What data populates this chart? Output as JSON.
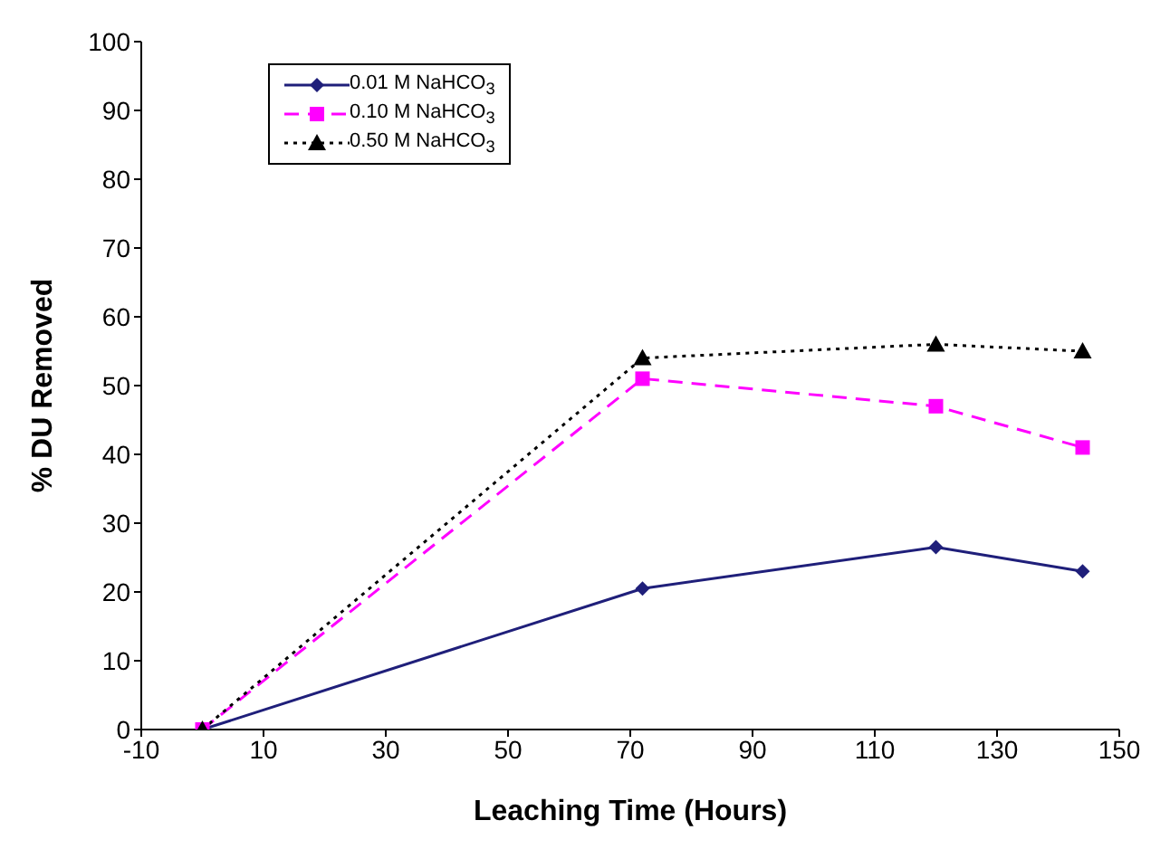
{
  "chart_data": {
    "type": "line",
    "xlabel": "Leaching Time (Hours)",
    "ylabel": "% DU Removed",
    "xlim": [
      -10,
      150
    ],
    "xticks": [
      -10,
      10,
      30,
      50,
      70,
      90,
      110,
      130,
      150
    ],
    "ylim": [
      0,
      100
    ],
    "yticks": [
      0,
      10,
      20,
      30,
      40,
      50,
      60,
      70,
      80,
      90,
      100
    ],
    "grid": false,
    "legend": "top left",
    "x": [
      0,
      72,
      120,
      144
    ],
    "series": [
      {
        "name": "0.01 M NaHCO$_{3}$",
        "color": "#1f1f7a",
        "values": [
          0,
          20.5,
          26.5,
          23
        ],
        "marker": "diamond",
        "line_style": "solid"
      },
      {
        "name": "0.10 M NaHCO$_{3}$",
        "color": "#ff00ff",
        "values": [
          0,
          51,
          47,
          41
        ],
        "marker": "square",
        "line_style": "dashed"
      },
      {
        "name": "0.50 M NaHCO$_{3}$",
        "color": "#000000",
        "values": [
          0,
          54,
          56,
          55
        ],
        "marker": "triangle",
        "line_style": "dotted"
      }
    ]
  }
}
